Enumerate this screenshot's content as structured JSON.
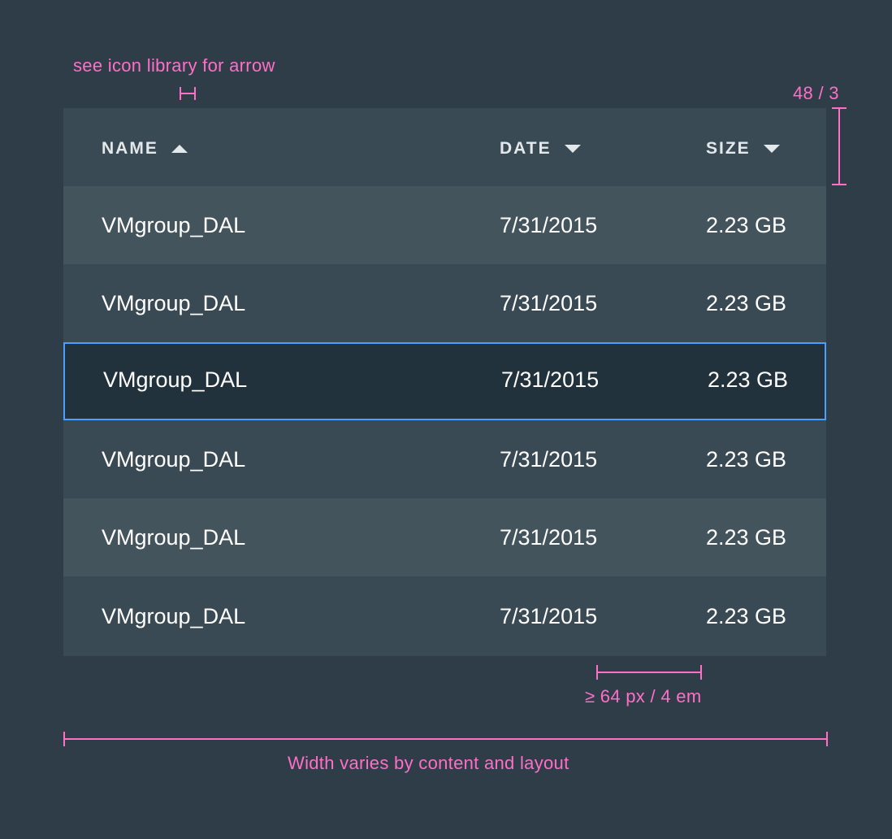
{
  "annotations": {
    "arrow_note": "see icon library for arrow",
    "row_height_note": "48 / 3",
    "column_gap_note": "≥ 64 px / 4 em",
    "width_note": "Width varies by content and layout"
  },
  "table": {
    "headers": {
      "name": "NAME",
      "date": "DATE",
      "size": "SIZE"
    },
    "sort": {
      "name": "ascending",
      "date": "descending",
      "size": "descending"
    },
    "rows": [
      {
        "name": "VMgroup_DAL",
        "date": "7/31/2015",
        "size": "2.23 GB",
        "state": "normal"
      },
      {
        "name": "VMgroup_DAL",
        "date": "7/31/2015",
        "size": "2.23 GB",
        "state": "normal"
      },
      {
        "name": "VMgroup_DAL",
        "date": "7/31/2015",
        "size": "2.23 GB",
        "state": "selected"
      },
      {
        "name": "VMgroup_DAL",
        "date": "7/31/2015",
        "size": "2.23 GB",
        "state": "normal"
      },
      {
        "name": "VMgroup_DAL",
        "date": "7/31/2015",
        "size": "2.23 GB",
        "state": "normal"
      },
      {
        "name": "VMgroup_DAL",
        "date": "7/31/2015",
        "size": "2.23 GB",
        "state": "normal"
      }
    ]
  },
  "colors": {
    "background": "#2e3d48",
    "annotation": "#ff6ec7",
    "selection_border": "#4a9fff",
    "row_light": "#44545d",
    "row_dark": "#3a4a54",
    "row_selected": "#22323d"
  }
}
